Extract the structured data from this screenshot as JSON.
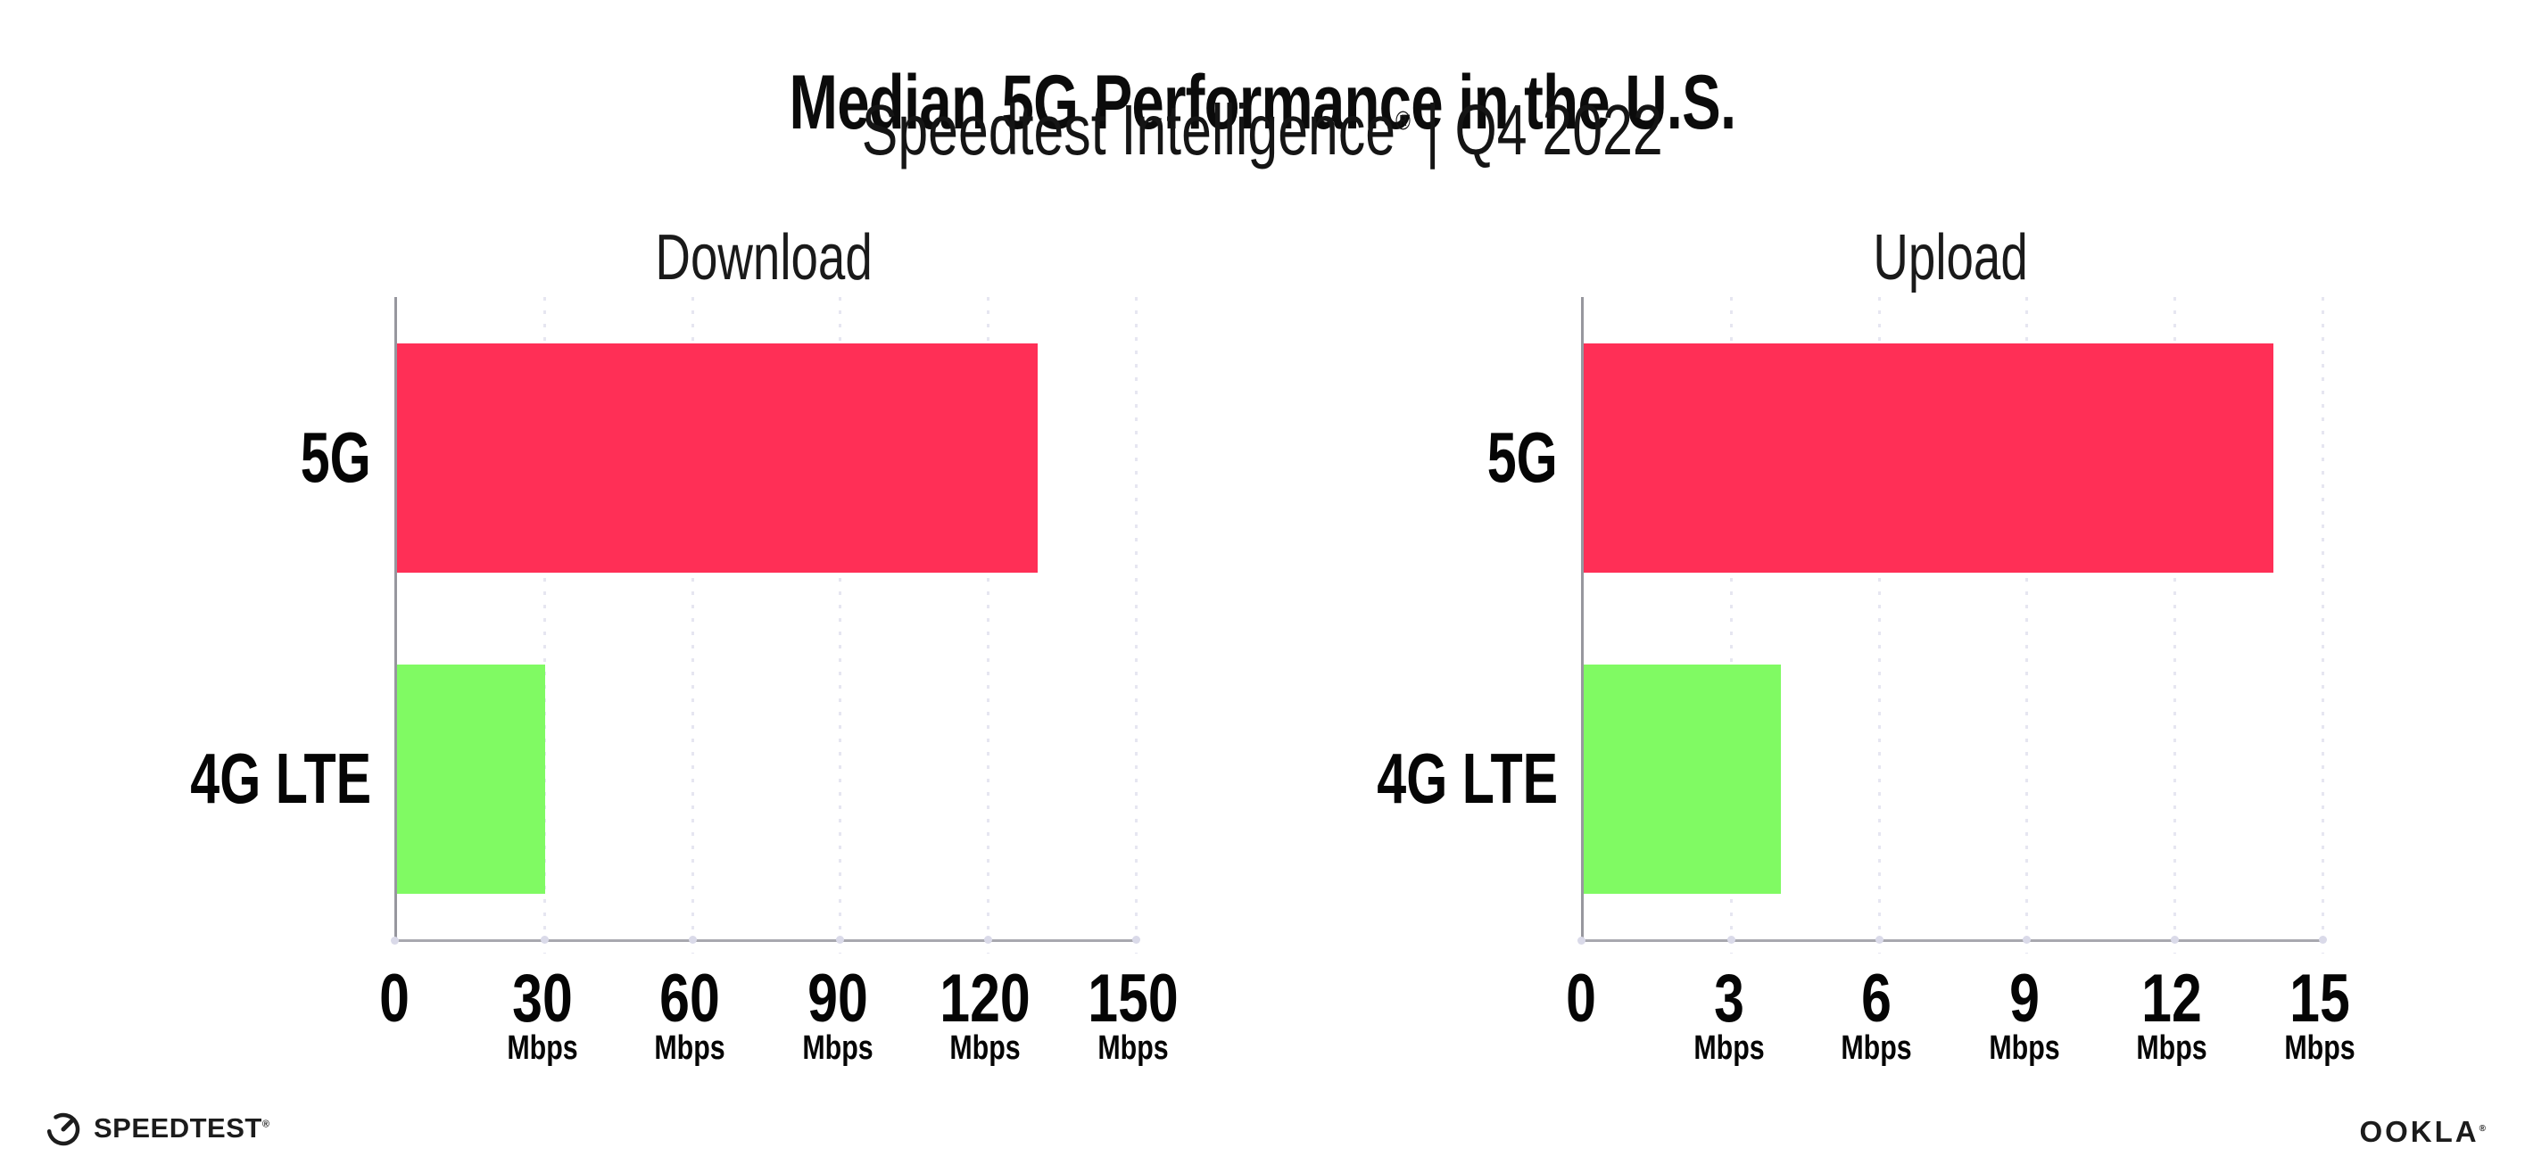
{
  "header": {
    "title": "Median 5G Performance in the U.S.",
    "subtitle_brand": "Speedtest Intelligence",
    "subtitle_reg": "®",
    "subtitle_rest": " | Q4 2022"
  },
  "footer": {
    "speedtest_label": "SPEEDTEST",
    "speedtest_reg": "®",
    "ookla_label": "OOKLA",
    "ookla_reg": "®"
  },
  "colors": {
    "bar_5g": "#FF2F56",
    "bar_4g_lte": "#80FA63",
    "gridline": "#E6E6F1",
    "axis": "#A0A0A7"
  },
  "chart_data": [
    {
      "type": "bar",
      "title": "Download",
      "orientation": "horizontal",
      "categories": [
        "5G",
        "4G LTE"
      ],
      "values": [
        130,
        30
      ],
      "unit": "Mbps",
      "xlim": [
        0,
        150
      ],
      "xticks": [
        0,
        30,
        60,
        90,
        120,
        150
      ],
      "bar_colors": [
        "#FF2F56",
        "#80FA63"
      ],
      "grid": "vertical-dotted",
      "legend": "none"
    },
    {
      "type": "bar",
      "title": "Upload",
      "orientation": "horizontal",
      "categories": [
        "5G",
        "4G LTE"
      ],
      "values": [
        14,
        4
      ],
      "unit": "Mbps",
      "xlim": [
        0,
        15
      ],
      "xticks": [
        0,
        3,
        6,
        9,
        12,
        15
      ],
      "bar_colors": [
        "#FF2F56",
        "#80FA63"
      ],
      "grid": "vertical-dotted",
      "legend": "none"
    }
  ]
}
